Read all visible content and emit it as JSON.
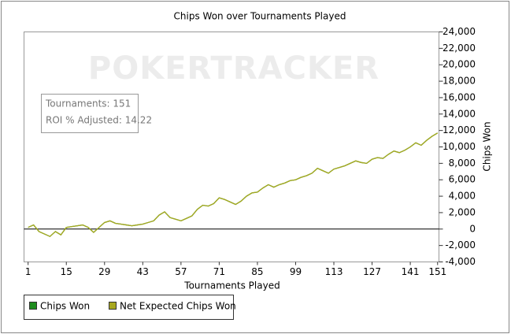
{
  "chart_data": {
    "type": "line",
    "title": "Chips Won over Tournaments Played",
    "watermark": "POKERTRACKER",
    "xlabel": "Tournaments Played",
    "ylabel": "Chips Won",
    "annotations": [
      "Tournaments: 151",
      "ROI % Adjusted: 14.22"
    ],
    "x": [
      1,
      3,
      5,
      7,
      9,
      11,
      13,
      15,
      17,
      19,
      21,
      23,
      25,
      27,
      29,
      31,
      33,
      35,
      37,
      39,
      41,
      43,
      45,
      47,
      49,
      51,
      53,
      55,
      57,
      59,
      61,
      63,
      65,
      67,
      69,
      71,
      73,
      75,
      77,
      79,
      81,
      83,
      85,
      87,
      89,
      91,
      93,
      95,
      97,
      99,
      101,
      103,
      105,
      107,
      109,
      111,
      113,
      115,
      117,
      119,
      121,
      123,
      125,
      127,
      129,
      131,
      133,
      135,
      137,
      139,
      141,
      143,
      145,
      147,
      149,
      151
    ],
    "series": [
      {
        "name": "Chips Won",
        "color": "#1e8c1e",
        "values": [
          200,
          500,
          -300,
          -600,
          -900,
          -300,
          -700,
          200,
          300,
          400,
          500,
          200,
          -400,
          200,
          800,
          1000,
          700,
          600,
          500,
          400,
          500,
          600,
          800,
          1000,
          1700,
          2100,
          1400,
          1200,
          1000,
          1300,
          1600,
          2400,
          2900,
          2800,
          3100,
          3800,
          3600,
          3300,
          3000,
          3400,
          4000,
          4400,
          4500,
          5000,
          5400,
          5100,
          5400,
          5600,
          5900,
          6000,
          6300,
          6500,
          6800,
          7400,
          7100,
          6800,
          7300,
          7500,
          7700,
          8000,
          8300,
          8100,
          8000,
          8500,
          8700,
          8600,
          9100,
          9500,
          9300,
          9600,
          10000,
          10500,
          10200,
          10800,
          11300,
          11700
        ]
      },
      {
        "name": "Net Expected Chips Won",
        "color": "#a8a820",
        "values": [
          200,
          500,
          -300,
          -600,
          -900,
          -300,
          -700,
          200,
          300,
          400,
          500,
          200,
          -400,
          200,
          800,
          1000,
          700,
          600,
          500,
          400,
          500,
          600,
          800,
          1000,
          1700,
          2100,
          1400,
          1200,
          1000,
          1300,
          1600,
          2400,
          2900,
          2800,
          3100,
          3800,
          3600,
          3300,
          3000,
          3400,
          4000,
          4400,
          4500,
          5000,
          5400,
          5100,
          5400,
          5600,
          5900,
          6000,
          6300,
          6500,
          6800,
          7400,
          7100,
          6800,
          7300,
          7500,
          7700,
          8000,
          8300,
          8100,
          8000,
          8500,
          8700,
          8600,
          9100,
          9500,
          9300,
          9600,
          10000,
          10500,
          10200,
          10800,
          11300,
          11700
        ]
      }
    ],
    "xlim": [
      -0.5,
      151.5
    ],
    "xticks": [
      1,
      15,
      29,
      43,
      57,
      71,
      85,
      99,
      113,
      127,
      141,
      151
    ],
    "ylim": [
      -4000,
      24000
    ],
    "yticks": [
      {
        "value": -4000,
        "label": "-4,000"
      },
      {
        "value": -2000,
        "label": "-2,000"
      },
      0,
      {
        "value": 2000,
        "label": "2,000"
      },
      {
        "value": 4000,
        "label": "4,000"
      },
      {
        "value": 6000,
        "label": "6,000"
      },
      {
        "value": 8000,
        "label": "8,000"
      },
      {
        "value": 10000,
        "label": "10,000"
      },
      {
        "value": 12000,
        "label": "12,000"
      },
      {
        "value": 14000,
        "label": "14,000"
      },
      {
        "value": 16000,
        "label": "16,000"
      },
      {
        "value": 18000,
        "label": "18,000"
      },
      {
        "value": 20000,
        "label": "20,000"
      },
      {
        "value": 22000,
        "label": "22,000"
      },
      {
        "value": 24000,
        "label": "24,000"
      }
    ],
    "yaxis_side": "right",
    "grid": false
  }
}
